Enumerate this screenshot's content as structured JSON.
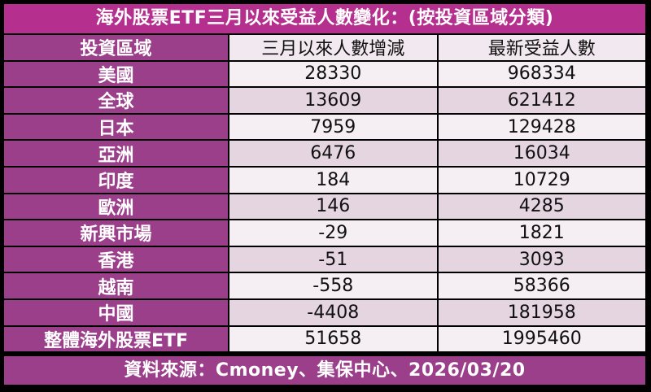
{
  "title": "海外股票ETF三月以來受益人數變化：(按投資區域分類)",
  "footer": "資料來源：Cmoney、集保中心、2026/03/20",
  "colors": {
    "title_bg": "#b52f8e",
    "label_bg": "#9b3f8b",
    "row_light": "#f5eef3",
    "row_dark": "#e5d5e1"
  },
  "chart_data": {
    "type": "table",
    "columns": [
      "投資區域",
      "三月以來人數增減",
      "最新受益人數"
    ],
    "rows": [
      [
        "美國",
        "28330",
        "968334"
      ],
      [
        "全球",
        "13609",
        "621412"
      ],
      [
        "日本",
        "7959",
        "129428"
      ],
      [
        "亞洲",
        "6476",
        "16034"
      ],
      [
        "印度",
        "184",
        "10729"
      ],
      [
        "歐洲",
        "146",
        "4285"
      ],
      [
        "新興市場",
        "-29",
        "1821"
      ],
      [
        "香港",
        "-51",
        "3093"
      ],
      [
        "越南",
        "-558",
        "58366"
      ],
      [
        "中國",
        "-4408",
        "181958"
      ],
      [
        "整體海外股票ETF",
        "51658",
        "1995460"
      ]
    ]
  }
}
